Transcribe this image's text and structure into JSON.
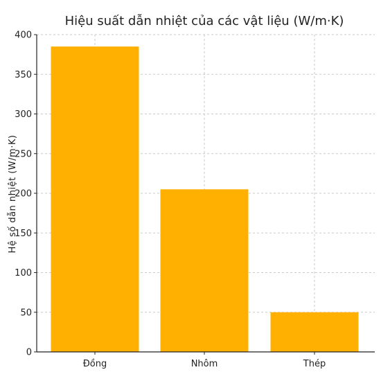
{
  "chart_data": {
    "type": "bar",
    "title": "Hiệu suất dẫn nhiệt của các vật liệu (W/m·K)",
    "xlabel": "",
    "ylabel": "Hệ số dẫn nhiệt (W/m·K)",
    "categories": [
      "Đồng",
      "Nhôm",
      "Thép"
    ],
    "values": [
      385,
      205,
      50
    ],
    "ylim": [
      0,
      400
    ],
    "yticks": [
      0,
      50,
      100,
      150,
      200,
      250,
      300,
      350,
      400
    ],
    "grid": true,
    "bar_color": "#FFB000"
  }
}
